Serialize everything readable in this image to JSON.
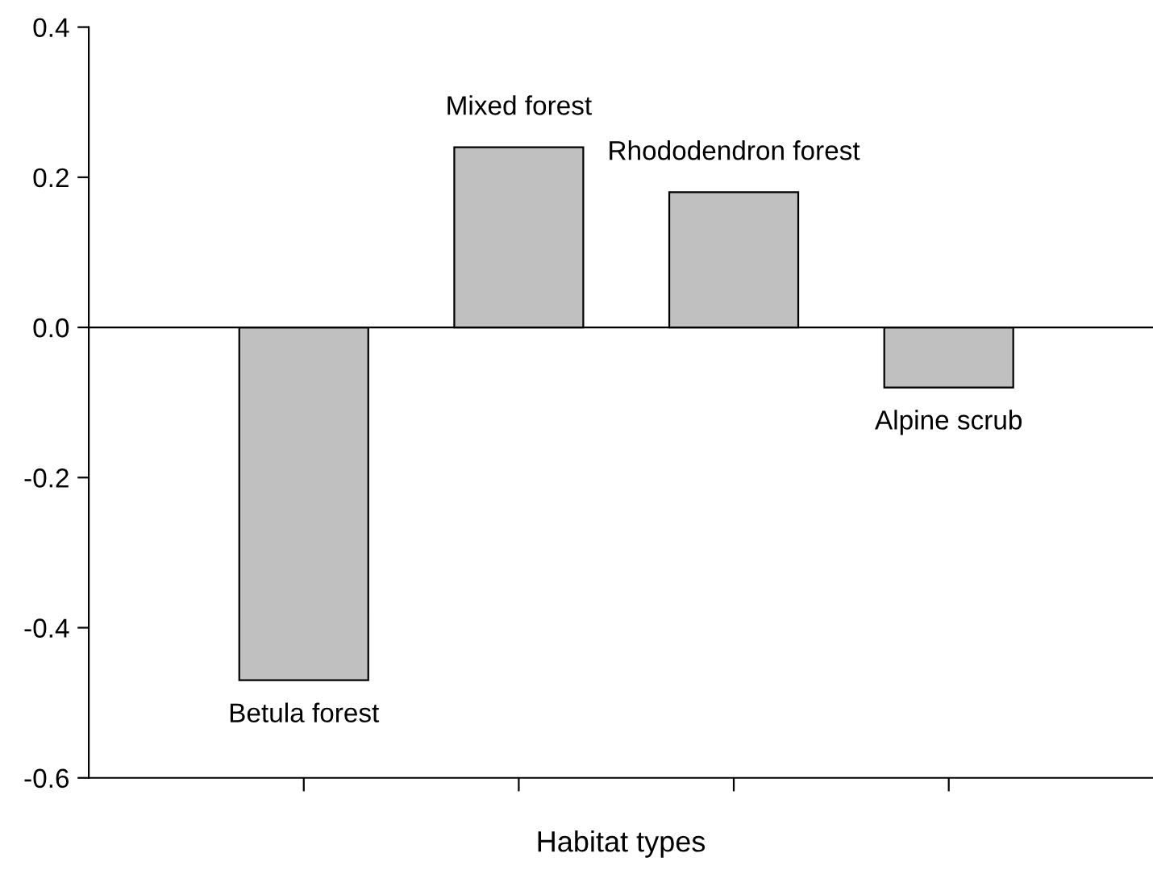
{
  "chart_data": {
    "type": "bar",
    "xlabel": "Habitat types",
    "categories": [
      "Betula forest",
      "Mixed forest",
      "Rhododendron forest",
      "Alpine scrub"
    ],
    "values": [
      -0.47,
      0.24,
      0.18,
      -0.08
    ],
    "color": "#c0c0c0",
    "ylim": [
      -0.6,
      0.4
    ],
    "yticks": [
      {
        "value": -0.6,
        "label": "-0.6"
      },
      {
        "value": -0.4,
        "label": "-0.4"
      },
      {
        "value": -0.2,
        "label": "-0.2"
      },
      {
        "value": 0.0,
        "label": "0.0"
      },
      {
        "value": 0.2,
        "label": "0.2"
      },
      {
        "value": 0.4,
        "label": "0.4"
      }
    ],
    "ref_lines": [
      {
        "axis": "y",
        "value": 0,
        "color": "#000000"
      }
    ],
    "grid": false
  }
}
